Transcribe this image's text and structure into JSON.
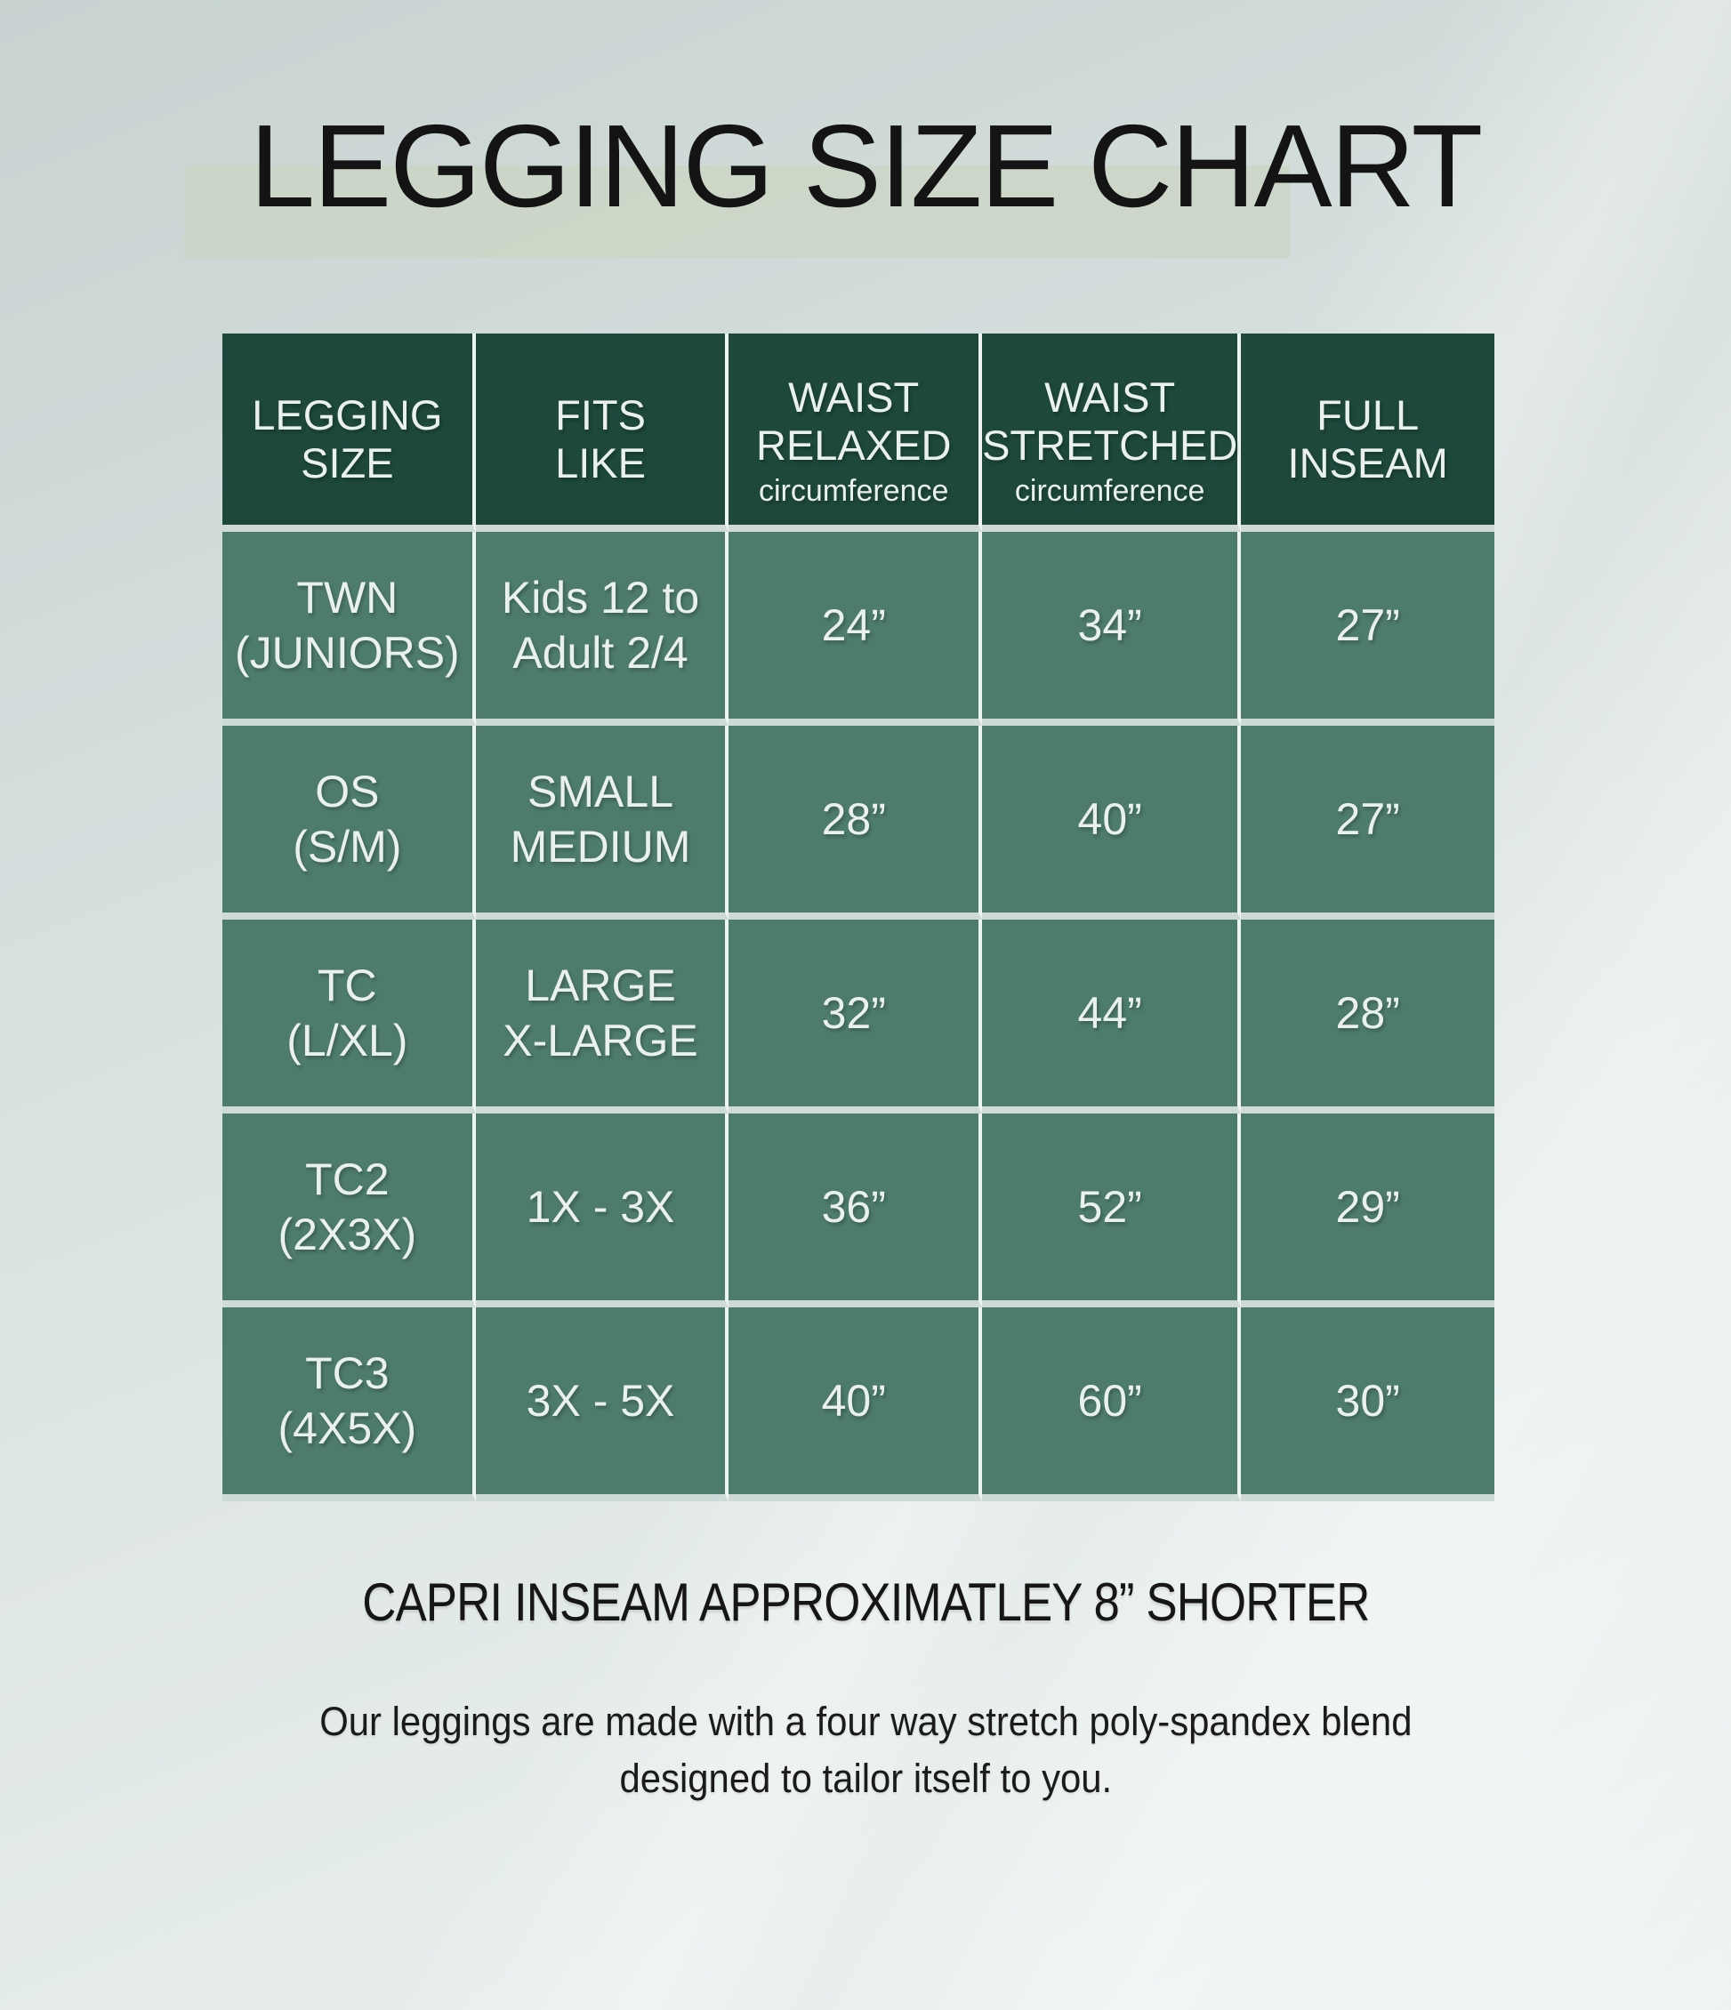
{
  "title": "LEGGING SIZE CHART",
  "table": {
    "headers": [
      {
        "title": "LEGGING\nSIZE",
        "sub": ""
      },
      {
        "title": "FITS\nLIKE",
        "sub": ""
      },
      {
        "title": "WAIST\nRELAXED",
        "sub": "circumference"
      },
      {
        "title": "WAIST\nSTRETCHED",
        "sub": "circumference"
      },
      {
        "title": "FULL\nINSEAM",
        "sub": ""
      }
    ],
    "rows": [
      [
        "TWN\n(JUNIORS)",
        "Kids 12 to\nAdult 2/4",
        "24”",
        "34”",
        "27”"
      ],
      [
        "OS\n(S/M)",
        "SMALL\nMEDIUM",
        "28”",
        "40”",
        "27”"
      ],
      [
        "TC\n(L/XL)",
        "LARGE\nX-LARGE",
        "32”",
        "44”",
        "28”"
      ],
      [
        "TC2\n(2X3X)",
        "1X - 3X",
        "36”",
        "52”",
        "29”"
      ],
      [
        "TC3\n(4X5X)",
        "3X - 5X",
        "40”",
        "60”",
        "30”"
      ]
    ]
  },
  "notes": {
    "capri": "CAPRI INSEAM APPROXIMATLEY 8” SHORTER",
    "fabric": "Our leggings are made with a four way stretch poly-spandex blend\ndesigned to tailor itself to you."
  },
  "colors": {
    "header_green": "#1d483b",
    "body_green": "#4d7b6c",
    "vertical_divider": "#eef4f2",
    "horizontal_divider": "#cedad7",
    "title_highlight": "#ccd6c7",
    "background_top": "#c7d2d1",
    "background_bottom": "#eaf0ef",
    "cell_text": "#eaf0ec",
    "title_text": "#141414"
  },
  "chart_data": {
    "type": "table",
    "title": "LEGGING SIZE CHART",
    "columns": [
      "LEGGING SIZE",
      "FITS LIKE",
      "WAIST RELAXED circumference",
      "WAIST STRETCHED circumference",
      "FULL INSEAM"
    ],
    "rows": [
      [
        "TWN (JUNIORS)",
        "Kids 12 to Adult 2/4",
        "24”",
        "34”",
        "27”"
      ],
      [
        "OS (S/M)",
        "SMALL MEDIUM",
        "28”",
        "40”",
        "27”"
      ],
      [
        "TC (L/XL)",
        "LARGE X-LARGE",
        "32”",
        "44”",
        "28”"
      ],
      [
        "TC2 (2X3X)",
        "1X - 3X",
        "36”",
        "52”",
        "29”"
      ],
      [
        "TC3 (4X5X)",
        "3X - 5X",
        "40”",
        "60”",
        "30”"
      ]
    ],
    "waist_relaxed_inches": [
      24,
      28,
      32,
      36,
      40
    ],
    "waist_stretched_inches": [
      34,
      40,
      44,
      52,
      60
    ],
    "full_inseam_inches": [
      27,
      27,
      28,
      29,
      30
    ],
    "notes": [
      "CAPRI INSEAM APPROXIMATLEY 8” SHORTER",
      "Our leggings are made with a four way stretch poly-spandex blend designed to tailor itself to you."
    ]
  }
}
